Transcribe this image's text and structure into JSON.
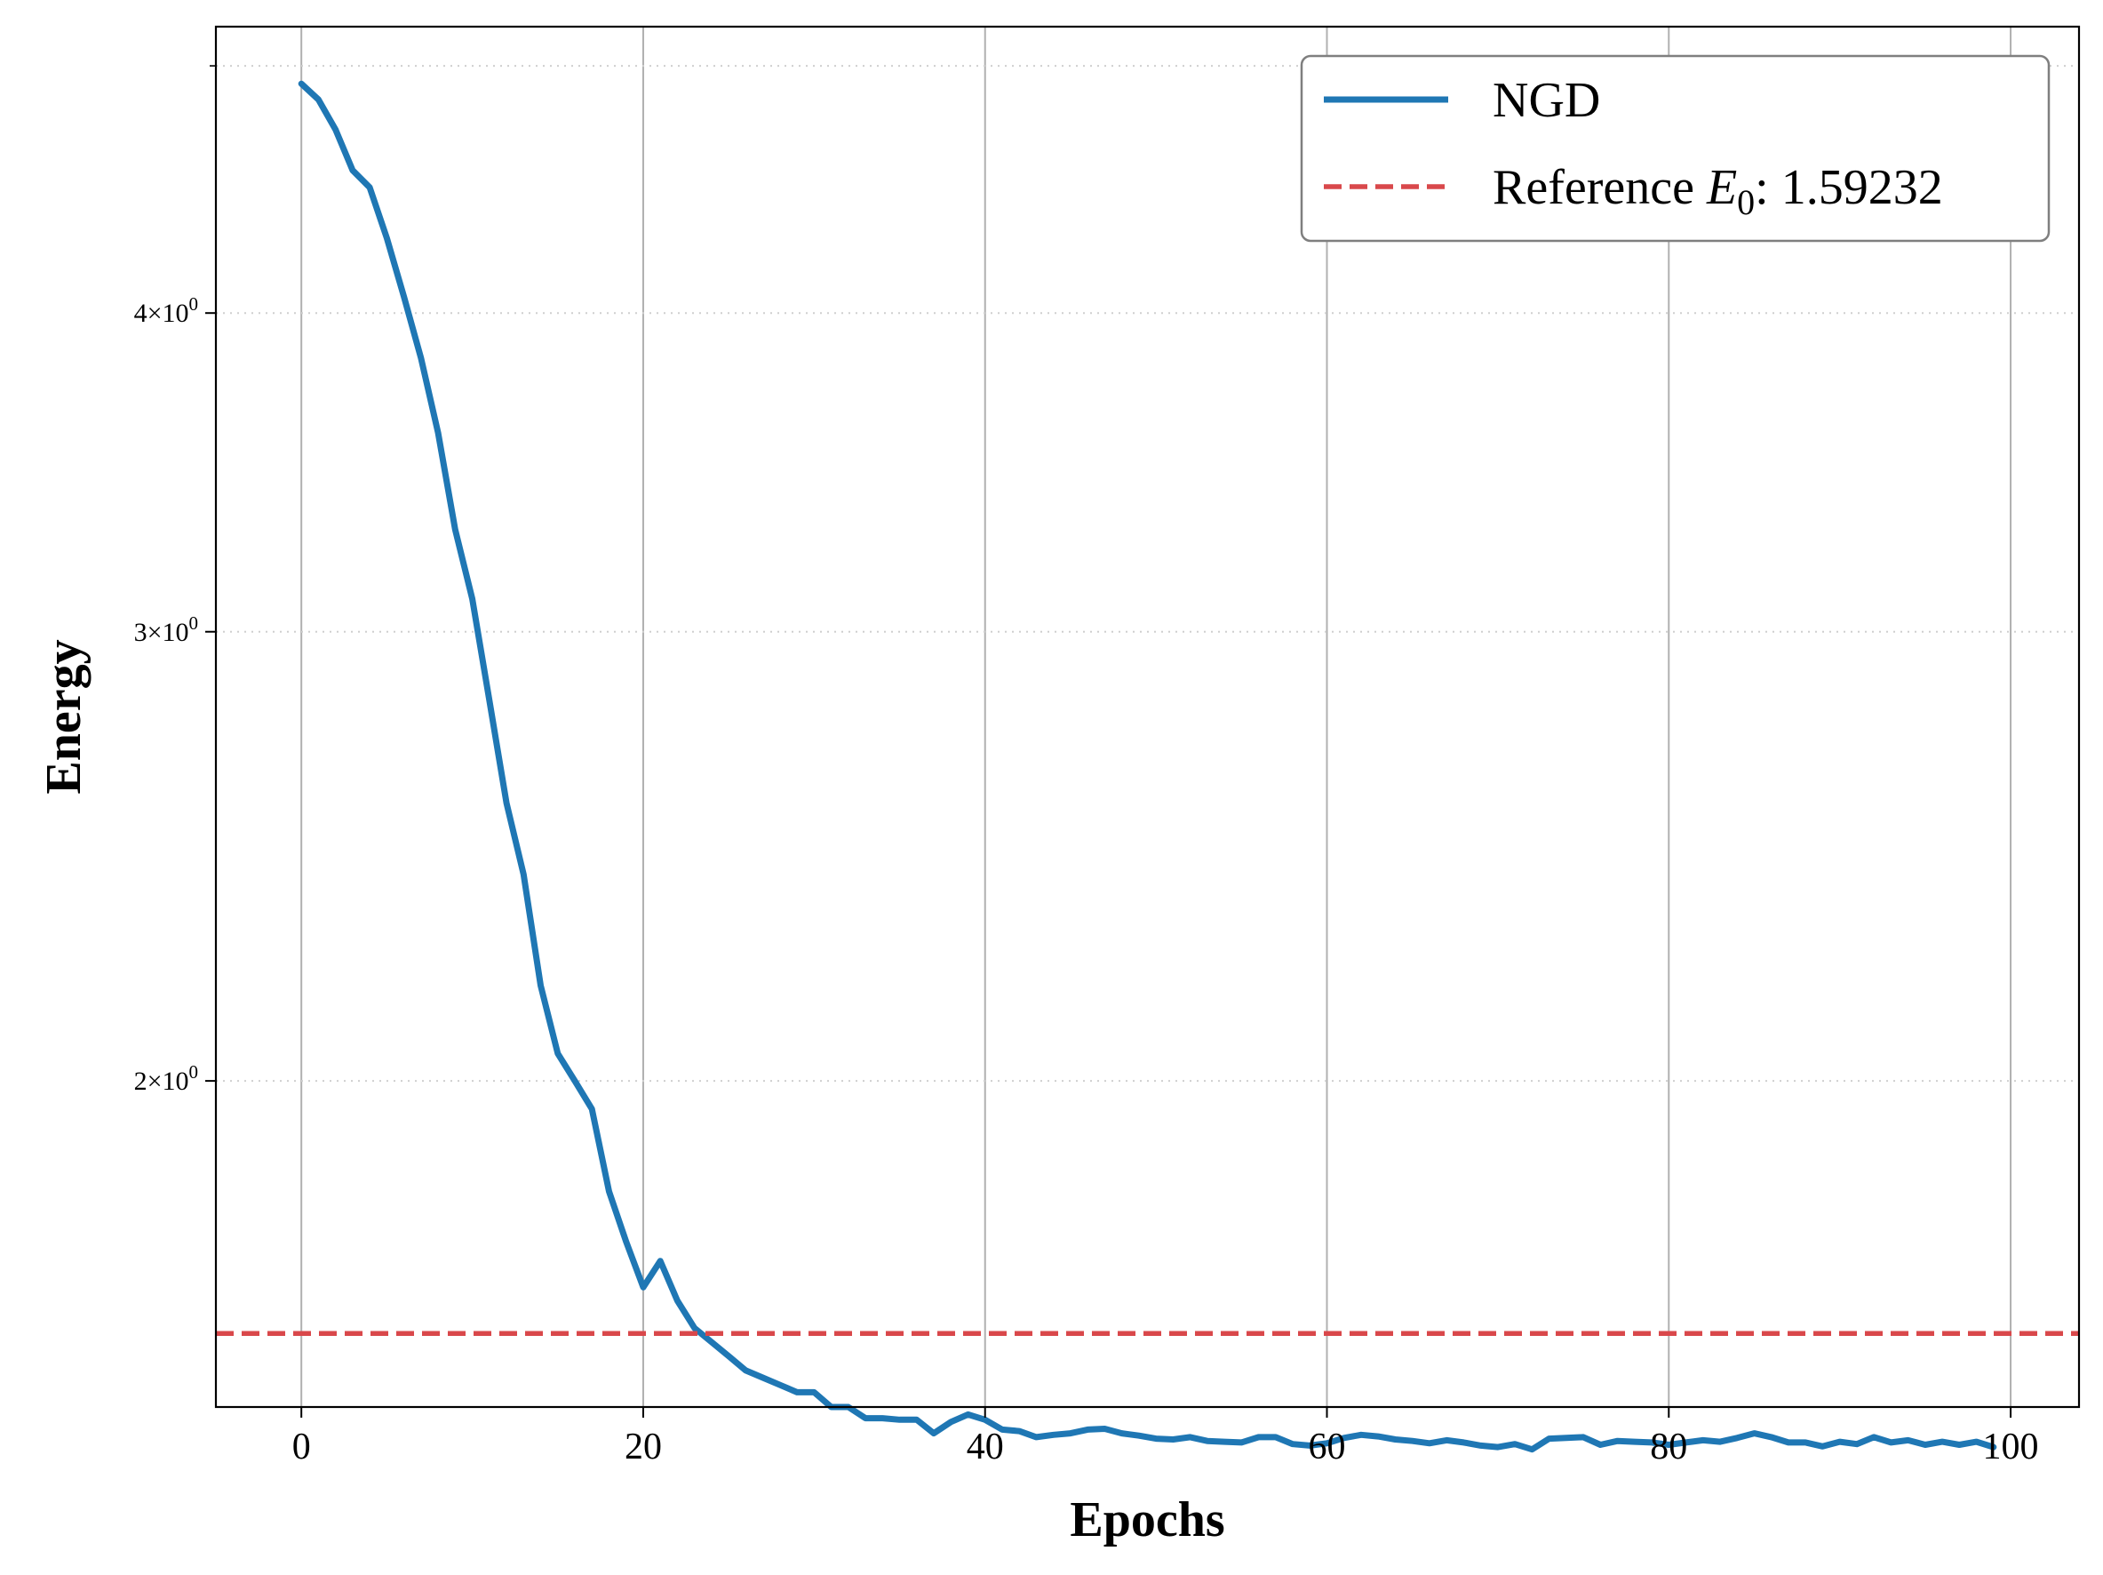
{
  "chart_data": {
    "type": "line",
    "title": "",
    "xlabel": "Epochs",
    "ylabel": "Energy",
    "xlim": [
      -5,
      104
    ],
    "ylim": [
      1.49,
      5.18
    ],
    "yscale": "log",
    "grid": {
      "x": true,
      "y": "dotted"
    },
    "legend_position": "top-right",
    "xticks": [
      0,
      20,
      40,
      60,
      80,
      100
    ],
    "xtick_labels": [
      "0",
      "20",
      "40",
      "60",
      "80",
      "100"
    ],
    "yticks": [
      2,
      3,
      4
    ],
    "ytick_labels": [
      {
        "mantissa": "2",
        "times": "×",
        "base": "10",
        "exp": "0"
      },
      {
        "mantissa": "3",
        "times": "×",
        "base": "10",
        "exp": "0"
      },
      {
        "mantissa": "4",
        "times": "×",
        "base": "10",
        "exp": "0"
      }
    ],
    "series": [
      {
        "name": "NGD",
        "color": "#1f77b4",
        "style": "solid",
        "x": [
          0,
          1,
          2,
          3,
          4,
          5,
          6,
          7,
          8,
          9,
          10,
          11,
          12,
          13,
          14,
          15,
          16,
          17,
          18,
          19,
          20,
          21,
          22,
          23,
          24,
          25,
          26,
          27,
          28,
          29,
          30,
          31,
          32,
          33,
          34,
          35,
          36,
          37,
          38,
          39,
          40,
          41,
          42,
          43,
          44,
          45,
          46,
          47,
          48,
          49,
          50,
          51,
          52,
          53,
          54,
          55,
          56,
          57,
          58,
          59,
          60,
          61,
          62,
          63,
          64,
          65,
          66,
          67,
          68,
          69,
          70,
          71,
          72,
          73,
          74,
          75,
          76,
          77,
          78,
          79,
          80,
          81,
          82,
          83,
          84,
          85,
          86,
          87,
          88,
          89,
          90,
          91,
          92,
          93,
          94,
          95,
          96,
          97,
          98,
          99
        ],
        "y": [
          4.92,
          4.85,
          4.72,
          4.55,
          4.48,
          4.28,
          4.06,
          3.84,
          3.59,
          3.29,
          3.09,
          2.82,
          2.57,
          2.41,
          2.18,
          2.05,
          2.0,
          1.95,
          1.81,
          1.73,
          1.66,
          1.7,
          1.64,
          1.6,
          1.58,
          1.56,
          1.54,
          1.53,
          1.52,
          1.51,
          1.51,
          1.49,
          1.49,
          1.475,
          1.475,
          1.473,
          1.473,
          1.455,
          1.47,
          1.48,
          1.473,
          1.46,
          1.458,
          1.45,
          1.453,
          1.455,
          1.46,
          1.461,
          1.455,
          1.452,
          1.448,
          1.447,
          1.45,
          1.445,
          1.444,
          1.443,
          1.45,
          1.45,
          1.441,
          1.439,
          1.442,
          1.449,
          1.453,
          1.451,
          1.447,
          1.445,
          1.442,
          1.446,
          1.443,
          1.439,
          1.437,
          1.441,
          1.434,
          1.448,
          1.449,
          1.45,
          1.44,
          1.445,
          1.444,
          1.443,
          1.44,
          1.443,
          1.446,
          1.444,
          1.449,
          1.455,
          1.45,
          1.443,
          1.443,
          1.438,
          1.444,
          1.441,
          1.45,
          1.443,
          1.446,
          1.44,
          1.444,
          1.44,
          1.444,
          1.437
        ]
      },
      {
        "name": "Reference $E_0$: 1.59232",
        "legend_label": "Reference E",
        "legend_sub": "0",
        "legend_suffix": ": 1.59232",
        "color": "#d9484b",
        "style": "dashed",
        "value": 1.5923
      }
    ]
  }
}
